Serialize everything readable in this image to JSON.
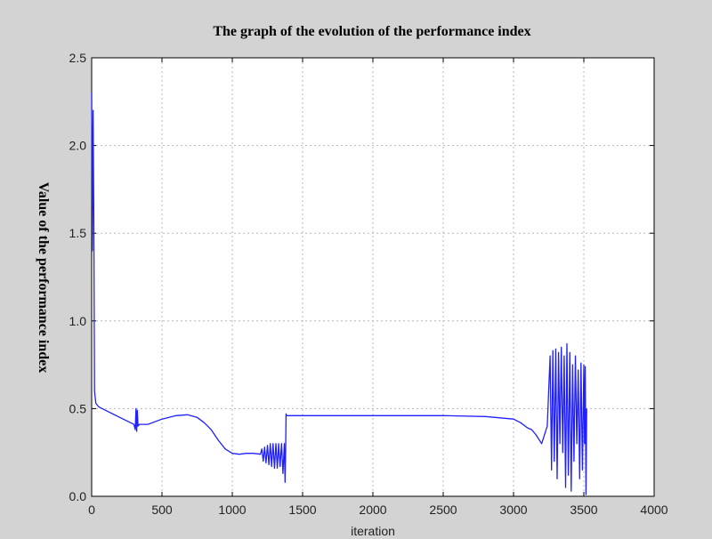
{
  "chart_data": {
    "type": "line",
    "title": "The graph of the evolution of the performance index",
    "xlabel": "iteration",
    "ylabel": "Value of the performance index",
    "xlim": [
      0,
      4000
    ],
    "ylim": [
      0,
      2.5
    ],
    "xticks": [
      "0",
      "500",
      "1000",
      "1500",
      "2000",
      "2500",
      "3000",
      "3500",
      "4000"
    ],
    "yticks": [
      "0.0",
      "0.5",
      "1.0",
      "1.5",
      "2.0",
      "2.5"
    ],
    "grid": true,
    "series": [
      {
        "color": "#1f1fff",
        "x": [
          0,
          5,
          10,
          15,
          20,
          30,
          50,
          100,
          200,
          300,
          310,
          315,
          320,
          325,
          330,
          340,
          360,
          400,
          500,
          600,
          680,
          750,
          800,
          850,
          900,
          950,
          1000,
          1050,
          1100,
          1150,
          1200,
          1210,
          1220,
          1230,
          1240,
          1250,
          1260,
          1270,
          1280,
          1290,
          1300,
          1310,
          1320,
          1330,
          1340,
          1350,
          1360,
          1370,
          1375,
          1380,
          1382,
          1385,
          1390,
          1400,
          1500,
          2000,
          2500,
          2800,
          3000,
          3050,
          3100,
          3130,
          3160,
          3200,
          3240,
          3260,
          3270,
          3280,
          3290,
          3300,
          3310,
          3320,
          3330,
          3340,
          3350,
          3360,
          3370,
          3380,
          3390,
          3400,
          3410,
          3420,
          3430,
          3440,
          3450,
          3460,
          3470,
          3480,
          3490,
          3500,
          3505,
          3510,
          3515,
          3520
        ],
        "y": [
          2.3,
          1.4,
          2.2,
          1.6,
          0.6,
          0.53,
          0.51,
          0.49,
          0.45,
          0.41,
          0.38,
          0.5,
          0.37,
          0.49,
          0.4,
          0.41,
          0.41,
          0.41,
          0.44,
          0.46,
          0.465,
          0.45,
          0.42,
          0.38,
          0.32,
          0.27,
          0.245,
          0.24,
          0.245,
          0.245,
          0.24,
          0.27,
          0.2,
          0.28,
          0.19,
          0.29,
          0.18,
          0.3,
          0.17,
          0.3,
          0.16,
          0.3,
          0.16,
          0.3,
          0.17,
          0.3,
          0.13,
          0.3,
          0.08,
          0.28,
          0.47,
          0.46,
          0.46,
          0.46,
          0.46,
          0.46,
          0.46,
          0.455,
          0.44,
          0.42,
          0.39,
          0.38,
          0.35,
          0.3,
          0.4,
          0.8,
          0.15,
          0.83,
          0.2,
          0.84,
          0.1,
          0.82,
          0.3,
          0.85,
          0.25,
          0.8,
          0.05,
          0.87,
          0.12,
          0.82,
          0.03,
          0.75,
          0.2,
          0.8,
          0.3,
          0.72,
          0.1,
          0.76,
          0.15,
          0.75,
          0.3,
          0.74,
          0.01,
          0.5
        ]
      }
    ]
  }
}
